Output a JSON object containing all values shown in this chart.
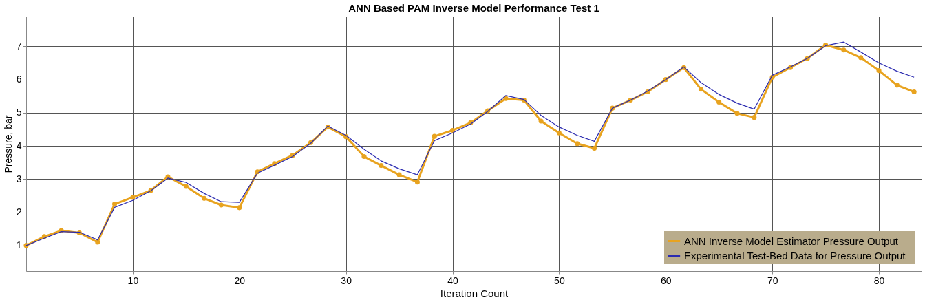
{
  "chart_data": {
    "type": "line",
    "title": "ANN Based PAM Inverse Model Performance Test 1",
    "xlabel": "Iteration Count",
    "ylabel": "Pressure, bar",
    "x": [
      0,
      1.7,
      3.3,
      5,
      6.7,
      8.3,
      10,
      11.7,
      13.3,
      15,
      16.7,
      18.3,
      20,
      21.7,
      23.3,
      25,
      26.7,
      28.3,
      30,
      31.7,
      33.3,
      35,
      36.7,
      38.3,
      40,
      41.7,
      43.3,
      45,
      46.7,
      48.3,
      50,
      51.7,
      53.3,
      55,
      56.7,
      58.3,
      60,
      61.7,
      63.3,
      65,
      66.7,
      68.3,
      70,
      71.7,
      73.3,
      75,
      76.7,
      78.3,
      80,
      81.7,
      83.3
    ],
    "series": [
      {
        "name": "ANN Inverse Model Estimator Pressure Output",
        "color": "#e8a31f",
        "marker": "circle",
        "values": [
          1.0,
          1.27,
          1.45,
          1.38,
          1.1,
          2.25,
          2.45,
          2.66,
          3.07,
          2.78,
          2.42,
          2.22,
          2.14,
          3.22,
          3.47,
          3.72,
          4.1,
          4.57,
          4.28,
          3.68,
          3.41,
          3.13,
          2.91,
          4.29,
          4.47,
          4.7,
          5.06,
          5.43,
          5.38,
          4.75,
          4.39,
          4.07,
          3.93,
          5.14,
          5.38,
          5.63,
          6.0,
          6.36,
          5.71,
          5.32,
          4.98,
          4.86,
          6.07,
          6.36,
          6.64,
          7.04,
          6.89,
          6.66,
          6.27,
          5.83,
          5.63
        ]
      },
      {
        "name": "Experimental Test-Bed  Data for  Pressure Output",
        "color": "#2b2bb0",
        "marker": "none",
        "values": [
          1.0,
          1.22,
          1.42,
          1.4,
          1.17,
          2.15,
          2.36,
          2.65,
          3.03,
          2.9,
          2.57,
          2.32,
          2.3,
          3.18,
          3.42,
          3.68,
          4.08,
          4.6,
          4.32,
          3.9,
          3.55,
          3.31,
          3.13,
          4.16,
          4.39,
          4.66,
          5.04,
          5.52,
          5.4,
          4.92,
          4.57,
          4.32,
          4.14,
          5.14,
          5.38,
          5.65,
          6.0,
          6.38,
          5.91,
          5.55,
          5.29,
          5.11,
          6.13,
          6.38,
          6.64,
          7.02,
          7.13,
          6.83,
          6.5,
          6.25,
          6.07
        ]
      }
    ],
    "xlim": [
      0,
      84
    ],
    "xticks": [
      10,
      20,
      30,
      40,
      50,
      60,
      70,
      80
    ],
    "ylim": [
      0.23,
      7.9
    ],
    "yticks": [
      1,
      2,
      3,
      4,
      5,
      6,
      7
    ],
    "grid": true,
    "legend": "bottom right",
    "line_style": "solid"
  }
}
